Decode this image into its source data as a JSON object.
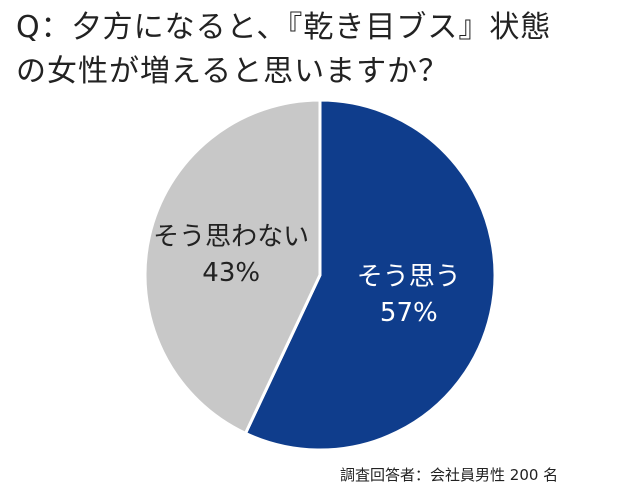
{
  "chart_data": {
    "type": "pie",
    "title_line1": "Q：夕方になると、『乾き目ブス』状態",
    "title_line2": "の女性が増えると思いますか？",
    "slices": [
      {
        "label": "そう思う",
        "value": 57,
        "value_label": "57%",
        "color": "#0f3d8c",
        "label_color": "#ffffff"
      },
      {
        "label": "そう思わない",
        "value": 43,
        "value_label": "43%",
        "color": "#c8c8c8",
        "label_color": "#222222"
      }
    ],
    "footnote": "調査回答者：会社員男性 200 名"
  }
}
